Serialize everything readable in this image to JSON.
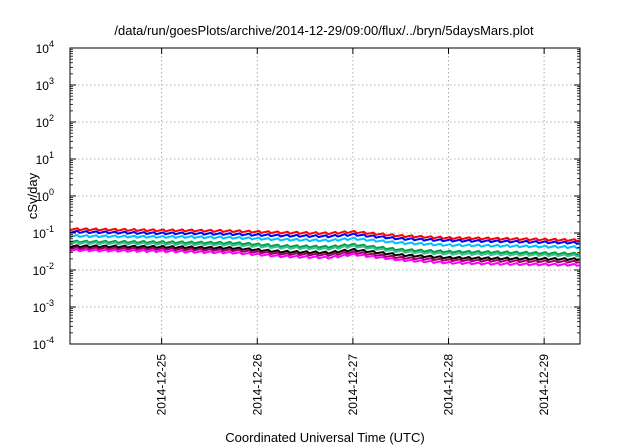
{
  "chart_data": {
    "type": "line",
    "title": "/data/run/goesPlots/archive/2014-12-29/09:00/flux/../bryn/5daysMars.plot",
    "xlabel": "Coordinated Universal Time (UTC)",
    "ylabel": "cSv/day",
    "x_range": [
      "2014-12-24T01:00",
      "2014-12-29T09:00"
    ],
    "x_ticks": [
      "2014-12-25",
      "2014-12-26",
      "2014-12-27",
      "2014-12-28",
      "2014-12-29"
    ],
    "y_scale": "log",
    "ylim": [
      0.0001,
      10000
    ],
    "y_ticks": [
      {
        "base": "10",
        "exp": "-4"
      },
      {
        "base": "10",
        "exp": "-3"
      },
      {
        "base": "10",
        "exp": "-2"
      },
      {
        "base": "10",
        "exp": "-1"
      },
      {
        "base": "10",
        "exp": "0"
      },
      {
        "base": "10",
        "exp": "1"
      },
      {
        "base": "10",
        "exp": "2"
      },
      {
        "base": "10",
        "exp": "3"
      },
      {
        "base": "10",
        "exp": "4"
      }
    ],
    "grid": true,
    "series": [
      {
        "color": "#ff0000",
        "anchors": [
          [
            "2014-12-24T01:00",
            0.13
          ],
          [
            "2014-12-25T00:00",
            0.12
          ],
          [
            "2014-12-25T06:00",
            0.12
          ],
          [
            "2014-12-25T18:00",
            0.115
          ],
          [
            "2014-12-26T06:00",
            0.105
          ],
          [
            "2014-12-26T18:00",
            0.1
          ],
          [
            "2014-12-27T00:00",
            0.11
          ],
          [
            "2014-12-27T12:00",
            0.085
          ],
          [
            "2014-12-28T00:00",
            0.075
          ],
          [
            "2014-12-28T12:00",
            0.072
          ],
          [
            "2014-12-29T09:00",
            0.065
          ]
        ]
      },
      {
        "color": "#0000ff",
        "anchors": [
          [
            "2014-12-24T01:00",
            0.11
          ],
          [
            "2014-12-25T00:00",
            0.1
          ],
          [
            "2014-12-25T06:00",
            0.1
          ],
          [
            "2014-12-25T18:00",
            0.095
          ],
          [
            "2014-12-26T06:00",
            0.087
          ],
          [
            "2014-12-26T18:00",
            0.083
          ],
          [
            "2014-12-27T00:00",
            0.093
          ],
          [
            "2014-12-27T12:00",
            0.071
          ],
          [
            "2014-12-28T00:00",
            0.064
          ],
          [
            "2014-12-28T12:00",
            0.061
          ],
          [
            "2014-12-29T09:00",
            0.055
          ]
        ]
      },
      {
        "color": "#00bfff",
        "anchors": [
          [
            "2014-12-24T01:00",
            0.085
          ],
          [
            "2014-12-25T00:00",
            0.08
          ],
          [
            "2014-12-25T06:00",
            0.08
          ],
          [
            "2014-12-25T18:00",
            0.076
          ],
          [
            "2014-12-26T06:00",
            0.068
          ],
          [
            "2014-12-26T18:00",
            0.064
          ],
          [
            "2014-12-27T00:00",
            0.072
          ],
          [
            "2014-12-27T12:00",
            0.055
          ],
          [
            "2014-12-28T00:00",
            0.048
          ],
          [
            "2014-12-28T12:00",
            0.046
          ],
          [
            "2014-12-29T09:00",
            0.042
          ]
        ]
      },
      {
        "color": "#00a040",
        "anchors": [
          [
            "2014-12-24T01:00",
            0.06
          ],
          [
            "2014-12-25T00:00",
            0.058
          ],
          [
            "2014-12-25T06:00",
            0.057
          ],
          [
            "2014-12-25T18:00",
            0.055
          ],
          [
            "2014-12-26T06:00",
            0.046
          ],
          [
            "2014-12-26T18:00",
            0.043
          ],
          [
            "2014-12-27T00:00",
            0.05
          ],
          [
            "2014-12-27T12:00",
            0.036
          ],
          [
            "2014-12-28T00:00",
            0.032
          ],
          [
            "2014-12-28T12:00",
            0.031
          ],
          [
            "2014-12-29T09:00",
            0.028
          ]
        ]
      },
      {
        "color": "#40c090",
        "anchors": [
          [
            "2014-12-24T01:00",
            0.055
          ],
          [
            "2014-12-25T00:00",
            0.052
          ],
          [
            "2014-12-25T06:00",
            0.051
          ],
          [
            "2014-12-25T18:00",
            0.049
          ],
          [
            "2014-12-26T06:00",
            0.041
          ],
          [
            "2014-12-26T18:00",
            0.038
          ],
          [
            "2014-12-27T00:00",
            0.045
          ],
          [
            "2014-12-27T12:00",
            0.032
          ],
          [
            "2014-12-28T00:00",
            0.028
          ],
          [
            "2014-12-28T12:00",
            0.027
          ],
          [
            "2014-12-29T09:00",
            0.025
          ]
        ]
      },
      {
        "color": "#000000",
        "anchors": [
          [
            "2014-12-24T01:00",
            0.045
          ],
          [
            "2014-12-25T00:00",
            0.043
          ],
          [
            "2014-12-25T06:00",
            0.042
          ],
          [
            "2014-12-25T18:00",
            0.04
          ],
          [
            "2014-12-26T06:00",
            0.032
          ],
          [
            "2014-12-26T18:00",
            0.03
          ],
          [
            "2014-12-27T00:00",
            0.036
          ],
          [
            "2014-12-27T12:00",
            0.026
          ],
          [
            "2014-12-28T00:00",
            0.022
          ],
          [
            "2014-12-28T12:00",
            0.021
          ],
          [
            "2014-12-29T09:00",
            0.02
          ]
        ]
      },
      {
        "color": "#a00060",
        "anchors": [
          [
            "2014-12-24T01:00",
            0.04
          ],
          [
            "2014-12-25T00:00",
            0.038
          ],
          [
            "2014-12-25T06:00",
            0.037
          ],
          [
            "2014-12-25T18:00",
            0.035
          ],
          [
            "2014-12-26T06:00",
            0.028
          ],
          [
            "2014-12-26T18:00",
            0.026
          ],
          [
            "2014-12-27T00:00",
            0.031
          ],
          [
            "2014-12-27T12:00",
            0.022
          ],
          [
            "2014-12-28T00:00",
            0.019
          ],
          [
            "2014-12-28T12:00",
            0.018
          ],
          [
            "2014-12-29T09:00",
            0.017
          ]
        ]
      },
      {
        "color": "#ff00ff",
        "anchors": [
          [
            "2014-12-24T01:00",
            0.035
          ],
          [
            "2014-12-25T00:00",
            0.033
          ],
          [
            "2014-12-25T06:00",
            0.032
          ],
          [
            "2014-12-25T18:00",
            0.03
          ],
          [
            "2014-12-26T06:00",
            0.024
          ],
          [
            "2014-12-26T18:00",
            0.022
          ],
          [
            "2014-12-27T00:00",
            0.027
          ],
          [
            "2014-12-27T12:00",
            0.019
          ],
          [
            "2014-12-28T00:00",
            0.016
          ],
          [
            "2014-12-28T12:00",
            0.015
          ],
          [
            "2014-12-29T09:00",
            0.014
          ]
        ]
      }
    ]
  }
}
